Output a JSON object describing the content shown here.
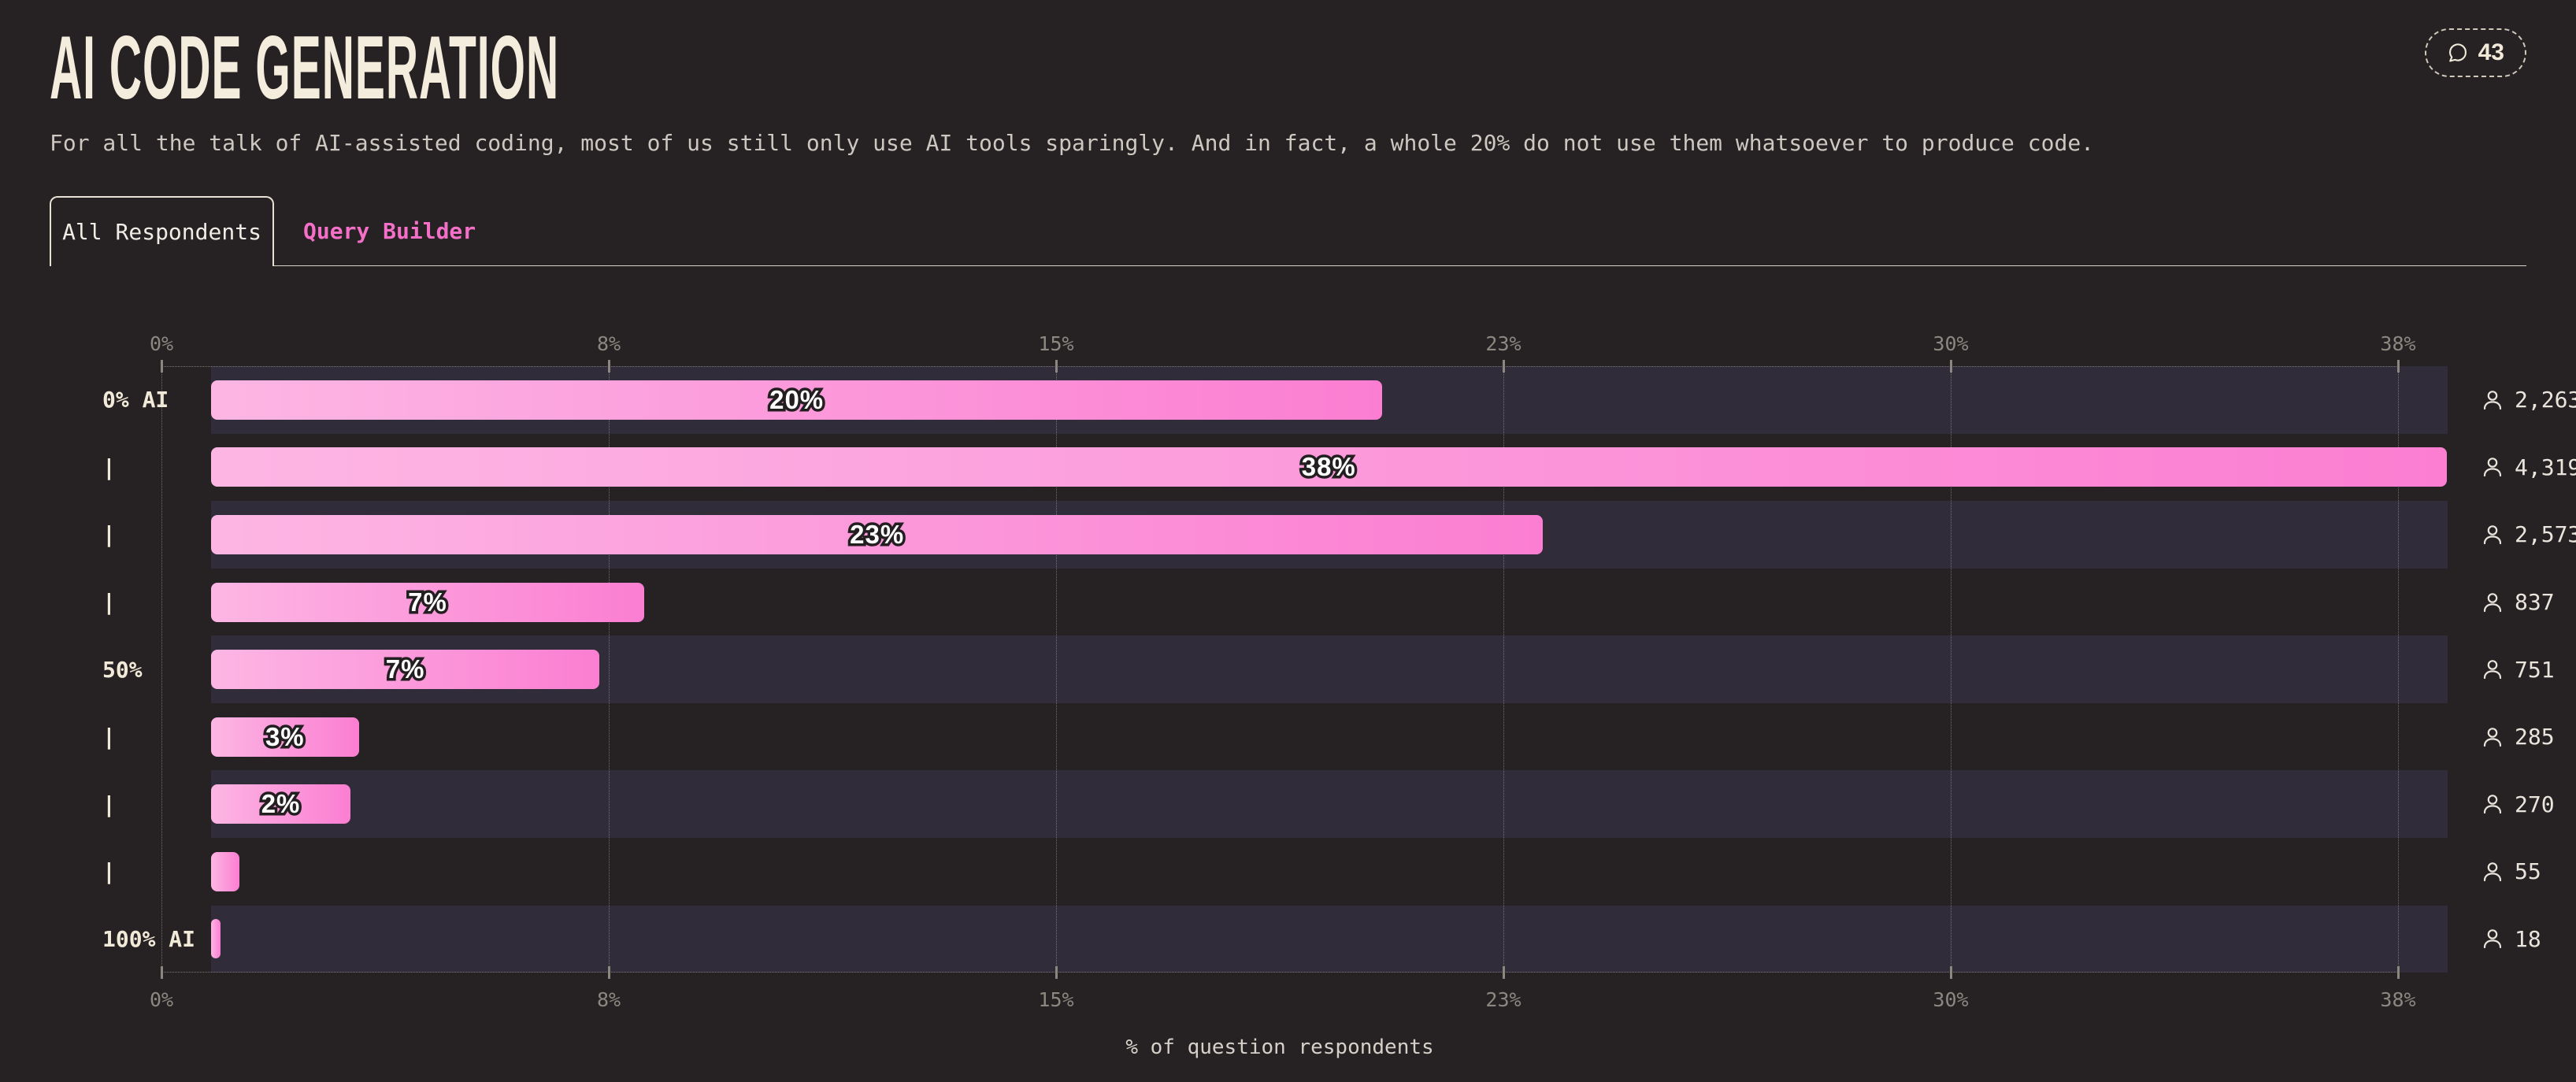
{
  "header": {
    "title": "AI CODE GENERATION",
    "comments_count": "43",
    "subtitle": "For all the talk of AI-assisted coding, most of us still only use AI tools sparingly. And in fact, a whole 20% do not use them whatsoever to produce code."
  },
  "tabs": [
    {
      "label": "All Respondents",
      "active": true
    },
    {
      "label": "Query Builder",
      "active": false
    }
  ],
  "chart_data": {
    "type": "bar",
    "orientation": "horizontal",
    "title": "AI CODE GENERATION",
    "xlabel": "% of question respondents",
    "xlim": [
      0,
      38
    ],
    "x_ticks": [
      "0%",
      "8%",
      "15%",
      "23%",
      "30%",
      "38%"
    ],
    "grid": "dotted-vertical",
    "categories": [
      "0% AI",
      "|",
      "|",
      "|",
      "50%",
      "|",
      "|",
      "|",
      "100% AI"
    ],
    "series": [
      {
        "name": "% of question respondents",
        "values_pct": [
          19.9,
          37.98,
          22.63,
          7.36,
          6.6,
          2.51,
          2.37,
          0.48,
          0.16
        ],
        "bar_labels": [
          "20%",
          "38%",
          "23%",
          "7%",
          "7%",
          "3%",
          "2%",
          "",
          ""
        ],
        "respondent_counts": [
          "2,263",
          "4,319",
          "2,573",
          "837",
          "751",
          "285",
          "270",
          "55",
          "18"
        ]
      }
    ],
    "colors": {
      "background": "#262223",
      "row_track": "#312c3a",
      "bar_gradient_start": "#fdb6e4",
      "bar_gradient_end": "#fb7ed2",
      "accent_pink": "#f46fc7",
      "cream": "#f2ead9",
      "tick_gray": "#8b8781"
    }
  }
}
